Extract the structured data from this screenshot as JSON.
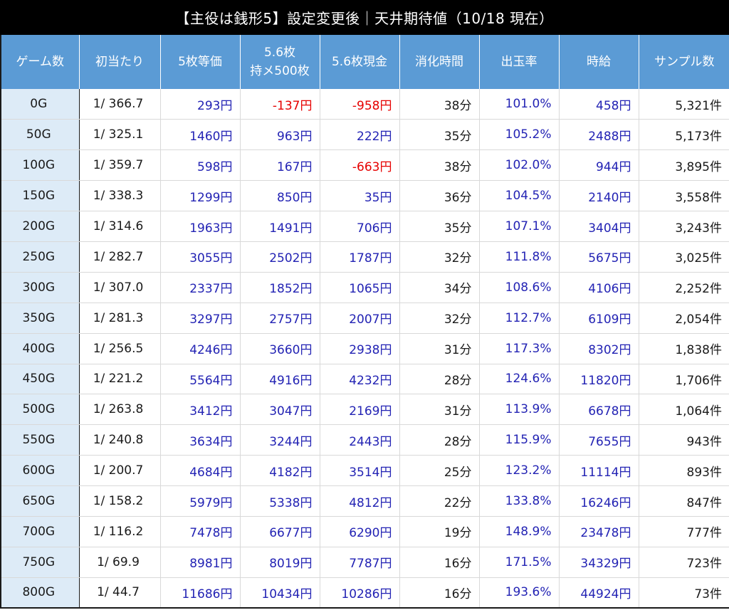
{
  "title": "【主役は銭形5】設定変更後｜天井期待値（10/18 現在）",
  "colors": {
    "header_bg": "#5b9bd5",
    "first_col_bg": "#ddebf7",
    "positive": "#2323b4",
    "negative": "#e60000"
  },
  "headers": [
    "ゲーム数",
    "初当たり",
    "5枚等価",
    "5.6枚",
    "持メ500枚",
    "5.6枚現金",
    "消化時間",
    "出玉率",
    "時給",
    "サンプル数"
  ],
  "rows": [
    {
      "game": "0G",
      "hit": "1/ 366.7",
      "eq5": "293円",
      "m500": "-137円",
      "cash": "-958円",
      "time": "38分",
      "rate": "101.0%",
      "hourly": "458円",
      "samples": "5,321件"
    },
    {
      "game": "50G",
      "hit": "1/ 325.1",
      "eq5": "1460円",
      "m500": "963円",
      "cash": "222円",
      "time": "35分",
      "rate": "105.2%",
      "hourly": "2488円",
      "samples": "5,173件"
    },
    {
      "game": "100G",
      "hit": "1/ 359.7",
      "eq5": "598円",
      "m500": "167円",
      "cash": "-663円",
      "time": "38分",
      "rate": "102.0%",
      "hourly": "944円",
      "samples": "3,895件"
    },
    {
      "game": "150G",
      "hit": "1/ 338.3",
      "eq5": "1299円",
      "m500": "850円",
      "cash": "35円",
      "time": "36分",
      "rate": "104.5%",
      "hourly": "2140円",
      "samples": "3,558件"
    },
    {
      "game": "200G",
      "hit": "1/ 314.6",
      "eq5": "1963円",
      "m500": "1491円",
      "cash": "706円",
      "time": "35分",
      "rate": "107.1%",
      "hourly": "3404円",
      "samples": "3,243件"
    },
    {
      "game": "250G",
      "hit": "1/ 282.7",
      "eq5": "3055円",
      "m500": "2502円",
      "cash": "1787円",
      "time": "32分",
      "rate": "111.8%",
      "hourly": "5675円",
      "samples": "3,025件"
    },
    {
      "game": "300G",
      "hit": "1/ 307.0",
      "eq5": "2337円",
      "m500": "1852円",
      "cash": "1065円",
      "time": "34分",
      "rate": "108.6%",
      "hourly": "4106円",
      "samples": "2,252件"
    },
    {
      "game": "350G",
      "hit": "1/ 281.3",
      "eq5": "3297円",
      "m500": "2757円",
      "cash": "2007円",
      "time": "32分",
      "rate": "112.7%",
      "hourly": "6109円",
      "samples": "2,054件"
    },
    {
      "game": "400G",
      "hit": "1/ 256.5",
      "eq5": "4246円",
      "m500": "3660円",
      "cash": "2938円",
      "time": "31分",
      "rate": "117.3%",
      "hourly": "8302円",
      "samples": "1,838件"
    },
    {
      "game": "450G",
      "hit": "1/ 221.2",
      "eq5": "5564円",
      "m500": "4916円",
      "cash": "4232円",
      "time": "28分",
      "rate": "124.6%",
      "hourly": "11820円",
      "samples": "1,706件"
    },
    {
      "game": "500G",
      "hit": "1/ 263.8",
      "eq5": "3412円",
      "m500": "3047円",
      "cash": "2169円",
      "time": "31分",
      "rate": "113.9%",
      "hourly": "6678円",
      "samples": "1,064件"
    },
    {
      "game": "550G",
      "hit": "1/ 240.8",
      "eq5": "3634円",
      "m500": "3244円",
      "cash": "2443円",
      "time": "28分",
      "rate": "115.9%",
      "hourly": "7655円",
      "samples": "943件"
    },
    {
      "game": "600G",
      "hit": "1/ 200.7",
      "eq5": "4684円",
      "m500": "4182円",
      "cash": "3514円",
      "time": "25分",
      "rate": "123.2%",
      "hourly": "11114円",
      "samples": "893件"
    },
    {
      "game": "650G",
      "hit": "1/ 158.2",
      "eq5": "5979円",
      "m500": "5338円",
      "cash": "4812円",
      "time": "22分",
      "rate": "133.8%",
      "hourly": "16246円",
      "samples": "847件"
    },
    {
      "game": "700G",
      "hit": "1/ 116.2",
      "eq5": "7478円",
      "m500": "6677円",
      "cash": "6290円",
      "time": "19分",
      "rate": "148.9%",
      "hourly": "23478円",
      "samples": "777件"
    },
    {
      "game": "750G",
      "hit": "1/ 69.9",
      "eq5": "8981円",
      "m500": "8019円",
      "cash": "7787円",
      "time": "16分",
      "rate": "171.5%",
      "hourly": "34329円",
      "samples": "723件"
    },
    {
      "game": "800G",
      "hit": "1/ 44.7",
      "eq5": "11686円",
      "m500": "10434円",
      "cash": "10286円",
      "time": "16分",
      "rate": "193.6%",
      "hourly": "44924円",
      "samples": "73件"
    }
  ]
}
